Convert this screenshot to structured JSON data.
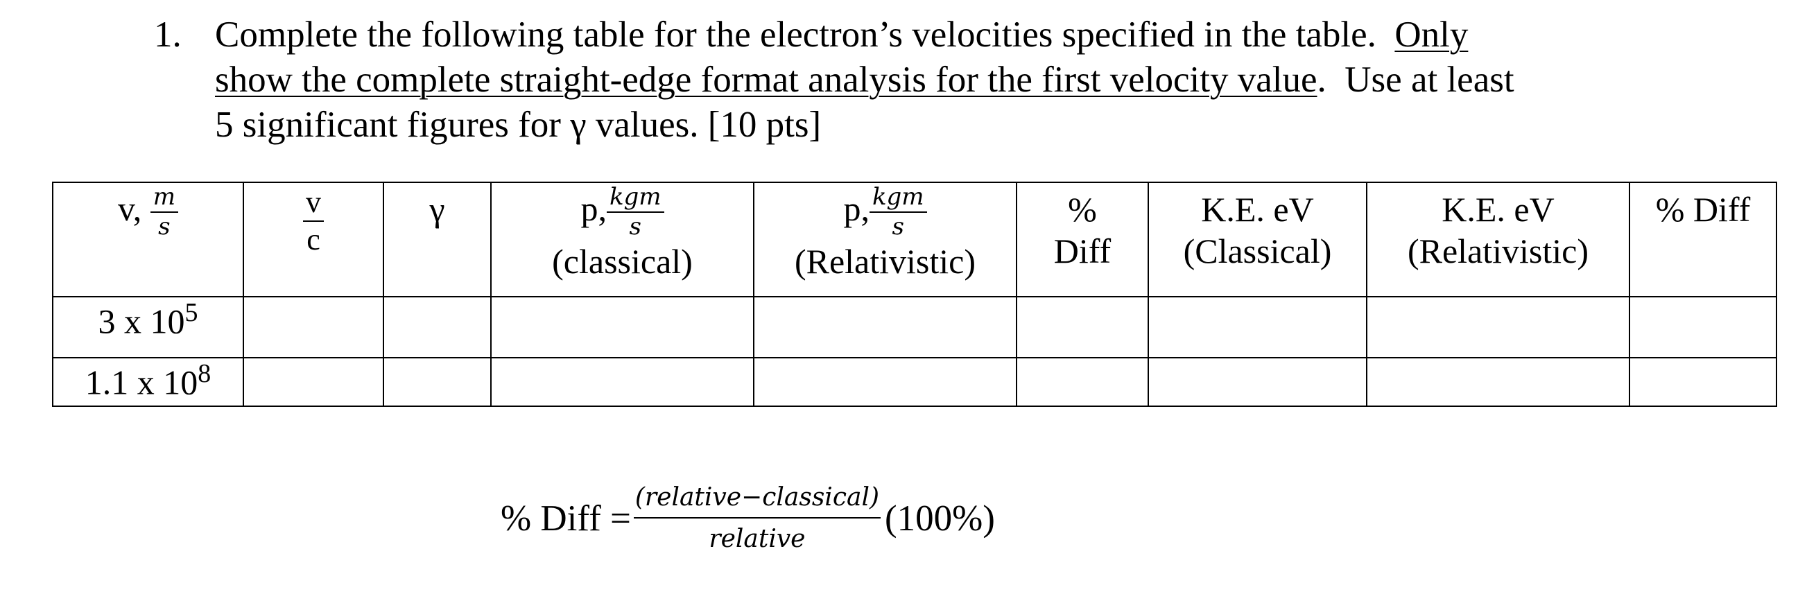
{
  "question": {
    "number": "1.",
    "line1_text": "Complete the following table for the electron’s velocities specified in the table.  ",
    "line1_underlined": "Only",
    "line2_underlined": "show the complete straight-edge format analysis for the first velocity value",
    "line2_text": ".  Use at least",
    "line3_text": "5 significant figures for γ values. [10 pts]"
  },
  "table": {
    "headers": {
      "velocity": {
        "prefix": "v,",
        "num": "m",
        "den": "s"
      },
      "v_over_c": {
        "num": "v",
        "den": "c"
      },
      "gamma": "γ",
      "p_classical": {
        "prefix": "p,",
        "num": "kgm",
        "den": "s",
        "label": "(classical)"
      },
      "p_relativistic": {
        "prefix": "p,",
        "num": "kgm",
        "den": "s",
        "label": "(Relativistic)"
      },
      "pct_diff_1": {
        "line1": "%",
        "line2": "Diff"
      },
      "ke_classical": {
        "line1": "K.E. eV",
        "line2": "(Classical)"
      },
      "ke_relativistic": {
        "line1": "K.E. eV",
        "line2": "(Relativistic)"
      },
      "pct_diff_2": "% Diff"
    },
    "rows": [
      {
        "velocity_base": "3 x 10",
        "velocity_exp": "5"
      },
      {
        "velocity_base": "1.1 x 10",
        "velocity_exp": "8"
      }
    ]
  },
  "formula": {
    "lhs": "% Diff =",
    "numerator": "(relative−classical)",
    "denominator": "relative",
    "rhs": "(100%)"
  }
}
